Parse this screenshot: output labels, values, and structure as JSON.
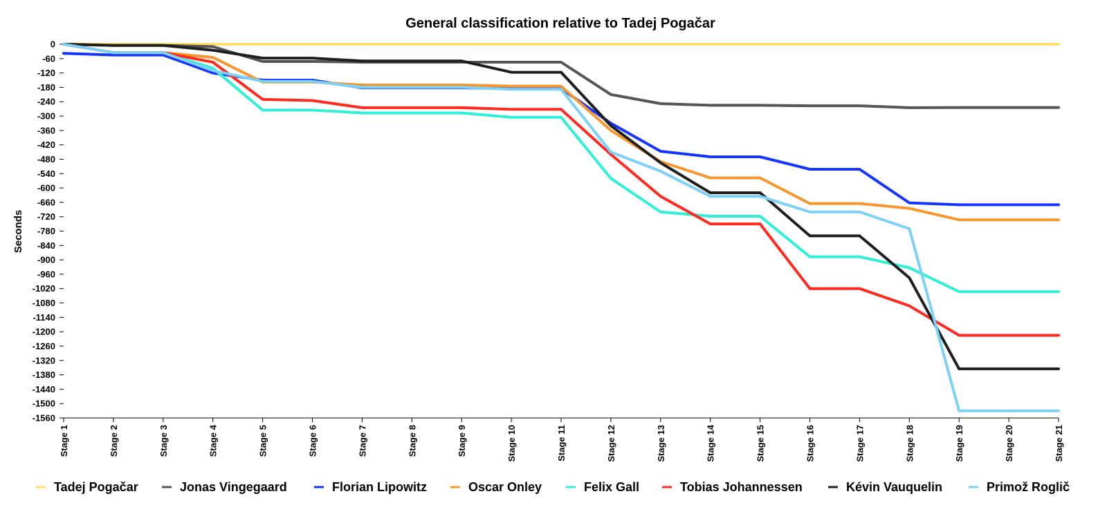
{
  "chart_data": {
    "type": "line",
    "title": "General classification relative to Tadej Pogačar",
    "xlabel": "",
    "ylabel": "Seconds",
    "ylim": [
      -1560,
      0
    ],
    "yticks": [
      0,
      -60,
      -120,
      -180,
      -240,
      -300,
      -360,
      -420,
      -480,
      -540,
      -600,
      -660,
      -720,
      -780,
      -840,
      -900,
      -960,
      -1020,
      -1080,
      -1140,
      -1200,
      -1260,
      -1320,
      -1380,
      -1440,
      -1500,
      -1560
    ],
    "grid": false,
    "legend_position": "bottom",
    "categories": [
      "Stage 1",
      "Stage 2",
      "Stage 3",
      "Stage 4",
      "Stage 5",
      "Stage 6",
      "Stage 7",
      "Stage 8",
      "Stage 9",
      "Stage 10",
      "Stage 11",
      "Stage 12",
      "Stage 13",
      "Stage 14",
      "Stage 15",
      "Stage 16",
      "Stage 17",
      "Stage 18",
      "Stage 19",
      "Stage 20",
      "Stage 21"
    ],
    "series": [
      {
        "name": "Tadej Pogačar",
        "color": "#FFE066",
        "values": [
          0,
          0,
          0,
          0,
          0,
          0,
          0,
          0,
          0,
          0,
          0,
          0,
          0,
          0,
          0,
          0,
          0,
          0,
          0,
          0,
          0
        ]
      },
      {
        "name": "Jonas Vingegaard",
        "color": "#555555",
        "values": [
          0,
          -5,
          -5,
          -10,
          -72,
          -72,
          -75,
          -75,
          -75,
          -75,
          -75,
          -210,
          -248,
          -255,
          -255,
          -257,
          -257,
          -265,
          -264,
          -264,
          -264
        ]
      },
      {
        "name": "Florian Lipowitz",
        "color": "#1434FF",
        "values": [
          -38,
          -45,
          -45,
          -120,
          -150,
          -150,
          -182,
          -182,
          -182,
          -185,
          -185,
          -330,
          -447,
          -470,
          -470,
          -522,
          -522,
          -662,
          -670,
          -670,
          -670
        ]
      },
      {
        "name": "Oscar Onley",
        "color": "#F7962C",
        "values": [
          0,
          -35,
          -35,
          -55,
          -158,
          -158,
          -170,
          -170,
          -170,
          -175,
          -175,
          -360,
          -490,
          -558,
          -558,
          -665,
          -665,
          -685,
          -733,
          -733,
          -733
        ]
      },
      {
        "name": "Felix Gall",
        "color": "#2FEFD6",
        "values": [
          0,
          -35,
          -35,
          -100,
          -275,
          -275,
          -287,
          -287,
          -287,
          -305,
          -305,
          -560,
          -700,
          -718,
          -718,
          -887,
          -887,
          -933,
          -1033,
          -1033,
          -1033
        ]
      },
      {
        "name": "Tobias Johannessen",
        "color": "#FF2A1F",
        "values": [
          0,
          -35,
          -35,
          -75,
          -230,
          -235,
          -265,
          -265,
          -265,
          -272,
          -272,
          -460,
          -635,
          -750,
          -750,
          -1020,
          -1020,
          -1092,
          -1215,
          -1215,
          -1215
        ]
      },
      {
        "name": "Kévin Vauquelin",
        "color": "#1E1E1E",
        "values": [
          0,
          -5,
          -5,
          -25,
          -58,
          -58,
          -70,
          -70,
          -70,
          -117,
          -117,
          -340,
          -495,
          -620,
          -620,
          -800,
          -800,
          -975,
          -1355,
          -1355,
          -1355
        ]
      },
      {
        "name": "Primož Roglič",
        "color": "#7DD1F7",
        "values": [
          0,
          -35,
          -35,
          -110,
          -155,
          -155,
          -180,
          -180,
          -180,
          -188,
          -188,
          -450,
          -530,
          -635,
          -635,
          -700,
          -700,
          -770,
          -1530,
          -1530,
          -1530
        ]
      }
    ]
  }
}
